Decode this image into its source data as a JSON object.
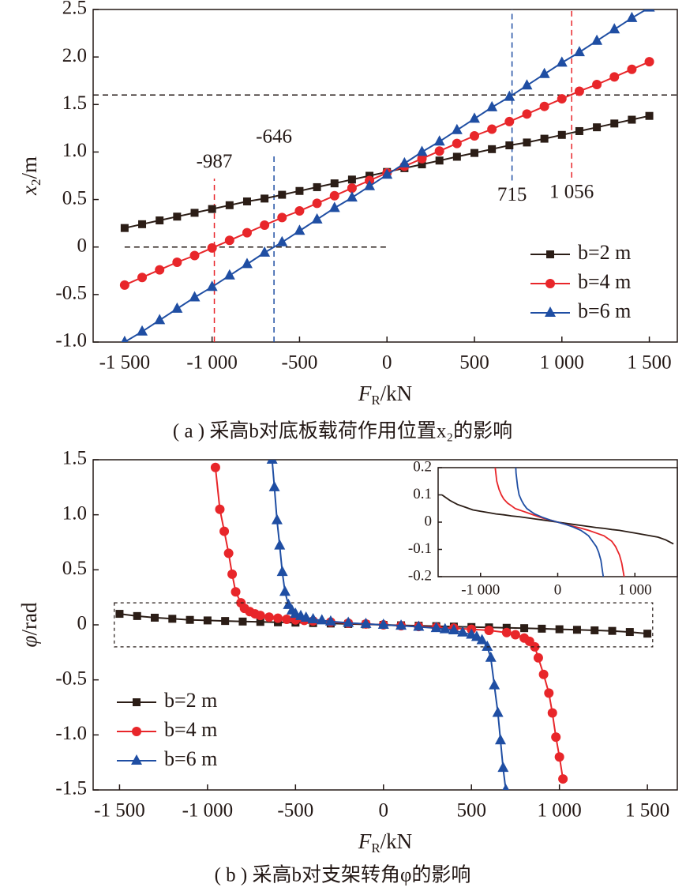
{
  "chart_data": [
    {
      "type": "line",
      "xlabel": {
        "var": "F",
        "sub": "R",
        "unit": "/kN"
      },
      "ylabel": {
        "var": "x",
        "sub": "2",
        "unit": "/m"
      },
      "caption": "( a ) 采高b对底板载荷作用位置x₂的影响",
      "xlim": [
        -1680,
        1660
      ],
      "ylim": [
        -1.0,
        2.5
      ],
      "xticks": [
        {
          "value": -1500,
          "label": "-1 500"
        },
        {
          "value": -1000,
          "label": "-1 000"
        },
        -500,
        0,
        500,
        {
          "value": 1000,
          "label": "1 000"
        },
        {
          "value": 1500,
          "label": "1 500"
        }
      ],
      "yticks": [
        {
          "value": -1.0,
          "label": "-1.0"
        },
        -0.5,
        0,
        0.5,
        {
          "value": 1.0,
          "label": "1.0"
        },
        1.5,
        {
          "value": 2.0,
          "label": "2.0"
        },
        2.5
      ],
      "legend": "lower right",
      "x": [
        -1500,
        -1400,
        -1300,
        -1200,
        -1100,
        -1000,
        -900,
        -800,
        -700,
        -600,
        -500,
        -400,
        -300,
        -200,
        -100,
        0,
        100,
        200,
        300,
        400,
        500,
        600,
        700,
        800,
        900,
        1000,
        1100,
        1200,
        1300,
        1400,
        1500
      ],
      "series": [
        {
          "name": "b=2 m",
          "color": "#2b1d16",
          "marker": "square",
          "values": [
            0.2,
            0.24,
            0.28,
            0.32,
            0.36,
            0.4,
            0.44,
            0.48,
            0.51,
            0.55,
            0.59,
            0.63,
            0.67,
            0.71,
            0.75,
            0.79,
            0.83,
            0.87,
            0.91,
            0.95,
            0.99,
            1.03,
            1.07,
            1.1,
            1.14,
            1.18,
            1.22,
            1.26,
            1.3,
            1.34,
            1.38
          ]
        },
        {
          "name": "b=4 m",
          "color": "#e8262a",
          "marker": "circle",
          "values": [
            -0.4,
            -0.32,
            -0.24,
            -0.16,
            -0.09,
            -0.01,
            0.07,
            0.15,
            0.23,
            0.31,
            0.38,
            0.46,
            0.54,
            0.62,
            0.7,
            0.78,
            0.85,
            0.93,
            1.01,
            1.09,
            1.17,
            1.24,
            1.32,
            1.4,
            1.48,
            1.56,
            1.64,
            1.71,
            1.79,
            1.87,
            1.95
          ]
        },
        {
          "name": "b=6 m",
          "color": "#1f4ea3",
          "marker": "triangle",
          "values": [
            -1.0,
            -0.89,
            -0.77,
            -0.65,
            -0.53,
            -0.42,
            -0.3,
            -0.18,
            -0.06,
            0.05,
            0.17,
            0.29,
            0.41,
            0.52,
            0.64,
            0.76,
            0.88,
            1.0,
            1.11,
            1.23,
            1.35,
            1.47,
            1.58,
            1.7,
            1.82,
            1.94,
            2.05,
            2.17,
            2.29,
            2.41,
            2.52
          ]
        }
      ],
      "hlines": [
        {
          "value": 1.6
        },
        {
          "value": 0,
          "xlim": [
            -1500,
            0
          ]
        }
      ],
      "vlines": [
        {
          "value": -987,
          "label": "-987",
          "color": "#e8262a",
          "ylim": [
            -1.0,
            0.72
          ]
        },
        {
          "value": -646,
          "label": "-646",
          "color": "#1f4ea3",
          "ylim": [
            -1.0,
            0.98
          ]
        },
        {
          "value": 715,
          "label": "715",
          "color": "#1f4ea3",
          "ylim": [
            0.7,
            2.5
          ]
        },
        {
          "value": 1056,
          "label": "1 056",
          "color": "#e8262a",
          "ylim": [
            0.73,
            2.5
          ]
        }
      ]
    },
    {
      "type": "line",
      "xlabel": {
        "var": "F",
        "sub": "R",
        "unit": "/kN"
      },
      "ylabel": {
        "var": "φ",
        "sub": "",
        "unit": "/rad"
      },
      "caption": "( b ) 采高b对支架转角φ的影响",
      "xlim": [
        -1650,
        1670
      ],
      "ylim": [
        -1.5,
        1.5
      ],
      "xticks": [
        {
          "value": -1500,
          "label": "-1 500"
        },
        {
          "value": -1000,
          "label": "-1 000"
        },
        -500,
        0,
        500,
        {
          "value": 1000,
          "label": "1 000"
        },
        {
          "value": 1500,
          "label": "1 500"
        }
      ],
      "yticks": [
        -1.5,
        {
          "value": -1.0,
          "label": "-1.0"
        },
        -0.5,
        0,
        0.5,
        {
          "value": 1.0,
          "label": "1.0"
        },
        1.5
      ],
      "legend": "lower left",
      "series": [
        {
          "name": "b=2 m",
          "color": "#2b1d16",
          "marker": "square",
          "x": [
            -1500,
            -1400,
            -1300,
            -1200,
            -1100,
            -1000,
            -900,
            -800,
            -700,
            -600,
            -500,
            -400,
            -300,
            -200,
            -100,
            0,
            100,
            200,
            300,
            400,
            500,
            600,
            700,
            800,
            900,
            1000,
            1100,
            1200,
            1300,
            1400,
            1500
          ],
          "values": [
            0.1,
            0.08,
            0.065,
            0.055,
            0.045,
            0.04,
            0.035,
            0.03,
            0.027,
            0.023,
            0.02,
            0.016,
            0.012,
            0.008,
            0.004,
            0,
            -0.004,
            -0.008,
            -0.012,
            -0.016,
            -0.02,
            -0.023,
            -0.027,
            -0.03,
            -0.035,
            -0.04,
            -0.045,
            -0.05,
            -0.055,
            -0.065,
            -0.08
          ]
        },
        {
          "name": "b=4 m",
          "color": "#e8262a",
          "marker": "circle",
          "x": [
            -955,
            -930,
            -905,
            -880,
            -860,
            -840,
            -810,
            -790,
            -760,
            -730,
            -700,
            -650,
            -600,
            -550,
            -500,
            -450,
            -400,
            -300,
            -200,
            -100,
            0,
            100,
            200,
            300,
            400,
            500,
            600,
            700,
            750,
            800,
            830,
            860,
            880,
            910,
            940,
            960,
            980,
            1000,
            1020
          ],
          "values": [
            1.43,
            1.05,
            0.85,
            0.65,
            0.46,
            0.3,
            0.2,
            0.15,
            0.12,
            0.1,
            0.085,
            0.07,
            0.06,
            0.05,
            0.045,
            0.04,
            0.035,
            0.025,
            0.015,
            0.008,
            0,
            -0.008,
            -0.015,
            -0.022,
            -0.03,
            -0.04,
            -0.05,
            -0.07,
            -0.09,
            -0.12,
            -0.15,
            -0.2,
            -0.3,
            -0.45,
            -0.62,
            -0.8,
            -1.02,
            -1.2,
            -1.4
          ]
        },
        {
          "name": "b=6 m",
          "color": "#1f4ea3",
          "marker": "triangle",
          "x": [
            -633,
            -620,
            -605,
            -590,
            -575,
            -560,
            -540,
            -520,
            -500,
            -470,
            -440,
            -400,
            -350,
            -300,
            -200,
            -100,
            0,
            100,
            200,
            300,
            350,
            400,
            450,
            500,
            530,
            560,
            590,
            610,
            630,
            650,
            665,
            680,
            695
          ],
          "values": [
            1.5,
            1.25,
            0.95,
            0.72,
            0.48,
            0.3,
            0.18,
            0.13,
            0.1,
            0.08,
            0.065,
            0.05,
            0.04,
            0.03,
            0.018,
            0.008,
            0,
            -0.008,
            -0.018,
            -0.03,
            -0.04,
            -0.05,
            -0.07,
            -0.09,
            -0.11,
            -0.14,
            -0.2,
            -0.3,
            -0.55,
            -0.8,
            -1.05,
            -1.3,
            -1.5
          ]
        }
      ],
      "highlight": {
        "xlim": [
          -1530,
          1530
        ],
        "ylim": [
          -0.2,
          0.2
        ]
      },
      "inset": {
        "xlim": [
          -1550,
          1550
        ],
        "ylim": [
          -0.2,
          0.2
        ],
        "xticks": [
          {
            "value": -1000,
            "label": "-1 000"
          },
          0,
          {
            "value": 1000,
            "label": "1 000"
          }
        ],
        "yticks": [
          -0.2,
          -0.1,
          0,
          0.1,
          0.2
        ]
      }
    }
  ]
}
